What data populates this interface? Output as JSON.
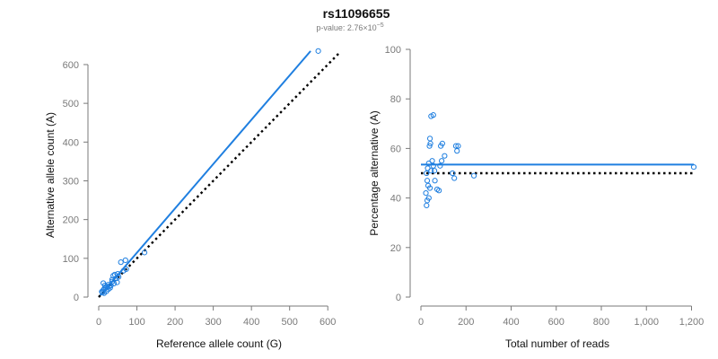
{
  "title": "rs11096655",
  "subtitle": {
    "prefix": "p-value: 2.76×10",
    "exponent": "−5"
  },
  "colors": {
    "accent": "#1f7fe0",
    "reference": "#000000",
    "axis": "#7a7a7a"
  },
  "chart_data": [
    {
      "type": "scatter",
      "xlabel": "Reference allele count (G)",
      "ylabel": "Alternative allele count (A)",
      "xlim": [
        0,
        630
      ],
      "ylim": [
        0,
        630
      ],
      "xticks": [
        {
          "v": 0,
          "label": "0"
        },
        {
          "v": 100,
          "label": "100"
        },
        {
          "v": 200,
          "label": "200"
        },
        {
          "v": 300,
          "label": "300"
        },
        {
          "v": 400,
          "label": "400"
        },
        {
          "v": 500,
          "label": "500"
        },
        {
          "v": 600,
          "label": "600"
        }
      ],
      "yticks": [
        {
          "v": 0,
          "label": "0"
        },
        {
          "v": 100,
          "label": "100"
        },
        {
          "v": 200,
          "label": "200"
        },
        {
          "v": 300,
          "label": "300"
        },
        {
          "v": 400,
          "label": "400"
        },
        {
          "v": 500,
          "label": "500"
        },
        {
          "v": 600,
          "label": "600"
        }
      ],
      "grid": false,
      "points": [
        {
          "x": 575,
          "y": 635
        },
        {
          "x": 120,
          "y": 115
        },
        {
          "x": 70,
          "y": 95
        },
        {
          "x": 58,
          "y": 90
        },
        {
          "x": 72,
          "y": 72
        },
        {
          "x": 65,
          "y": 68
        },
        {
          "x": 50,
          "y": 60
        },
        {
          "x": 42,
          "y": 58
        },
        {
          "x": 38,
          "y": 55
        },
        {
          "x": 52,
          "y": 52
        },
        {
          "x": 45,
          "y": 48
        },
        {
          "x": 35,
          "y": 45
        },
        {
          "x": 48,
          "y": 38
        },
        {
          "x": 40,
          "y": 35
        },
        {
          "x": 32,
          "y": 30
        },
        {
          "x": 28,
          "y": 28
        },
        {
          "x": 22,
          "y": 27
        },
        {
          "x": 18,
          "y": 24
        },
        {
          "x": 25,
          "y": 20
        },
        {
          "x": 15,
          "y": 22
        },
        {
          "x": 12,
          "y": 18
        },
        {
          "x": 20,
          "y": 15
        },
        {
          "x": 10,
          "y": 12
        },
        {
          "x": 14,
          "y": 10
        },
        {
          "x": 8,
          "y": 14
        },
        {
          "x": 16,
          "y": 30
        },
        {
          "x": 12,
          "y": 36
        },
        {
          "x": 30,
          "y": 24
        },
        {
          "x": 35,
          "y": 40
        },
        {
          "x": 25,
          "y": 32
        }
      ],
      "lines": [
        {
          "style": "solid",
          "color": "#1f7fe0",
          "x": [
            0,
            555
          ],
          "y": [
            0,
            635
          ]
        },
        {
          "style": "dotted",
          "color": "#000000",
          "x": [
            0,
            630
          ],
          "y": [
            0,
            630
          ]
        }
      ]
    },
    {
      "type": "scatter",
      "xlabel": "Total number of reads",
      "ylabel": "Percentage alternative (A)",
      "xlim": [
        0,
        1210
      ],
      "ylim": [
        0,
        100
      ],
      "xticks": [
        {
          "v": 0,
          "label": "0"
        },
        {
          "v": 200,
          "label": "200"
        },
        {
          "v": 400,
          "label": "400"
        },
        {
          "v": 600,
          "label": "600"
        },
        {
          "v": 800,
          "label": "800"
        },
        {
          "v": 1000,
          "label": "1,000"
        },
        {
          "v": 1200,
          "label": "1,200"
        }
      ],
      "yticks": [
        {
          "v": 0,
          "label": "0"
        },
        {
          "v": 20,
          "label": "20"
        },
        {
          "v": 40,
          "label": "40"
        },
        {
          "v": 60,
          "label": "60"
        },
        {
          "v": 80,
          "label": "80"
        },
        {
          "v": 100,
          "label": "100"
        }
      ],
      "grid": false,
      "points": [
        {
          "x": 1210,
          "y": 52.5
        },
        {
          "x": 235,
          "y": 49
        },
        {
          "x": 165,
          "y": 61
        },
        {
          "x": 155,
          "y": 61
        },
        {
          "x": 160,
          "y": 59
        },
        {
          "x": 148,
          "y": 48
        },
        {
          "x": 140,
          "y": 50
        },
        {
          "x": 105,
          "y": 57
        },
        {
          "x": 95,
          "y": 62
        },
        {
          "x": 88,
          "y": 61
        },
        {
          "x": 92,
          "y": 55
        },
        {
          "x": 85,
          "y": 53
        },
        {
          "x": 80,
          "y": 43
        },
        {
          "x": 72,
          "y": 43.5
        },
        {
          "x": 55,
          "y": 73.5
        },
        {
          "x": 45,
          "y": 73
        },
        {
          "x": 40,
          "y": 64
        },
        {
          "x": 42,
          "y": 62
        },
        {
          "x": 38,
          "y": 61
        },
        {
          "x": 50,
          "y": 55
        },
        {
          "x": 55,
          "y": 53
        },
        {
          "x": 60,
          "y": 51
        },
        {
          "x": 35,
          "y": 54
        },
        {
          "x": 30,
          "y": 52
        },
        {
          "x": 25,
          "y": 50
        },
        {
          "x": 45,
          "y": 51
        },
        {
          "x": 28,
          "y": 47
        },
        {
          "x": 32,
          "y": 45
        },
        {
          "x": 40,
          "y": 44
        },
        {
          "x": 22,
          "y": 42
        },
        {
          "x": 35,
          "y": 40
        },
        {
          "x": 28,
          "y": 39
        },
        {
          "x": 25,
          "y": 37
        },
        {
          "x": 62,
          "y": 47
        }
      ],
      "lines": [
        {
          "style": "solid",
          "color": "#1f7fe0",
          "x": [
            0,
            1210
          ],
          "y": [
            53.5,
            53.5
          ]
        },
        {
          "style": "dotted",
          "color": "#000000",
          "x": [
            0,
            1210
          ],
          "y": [
            50,
            50
          ]
        }
      ]
    }
  ]
}
